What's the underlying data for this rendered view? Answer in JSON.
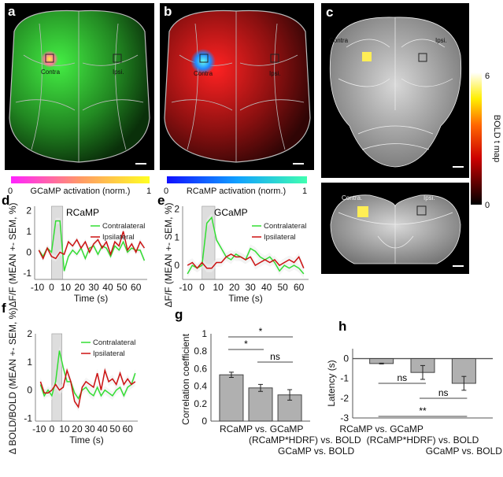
{
  "panels": {
    "a": {
      "label": "a",
      "roi_contra": "Contra",
      "roi_ipsi": "Ipsi.",
      "colorbar": {
        "min": "0",
        "max": "1",
        "title": "GCaMP activation (norm.)",
        "colors": [
          "#ff22ff",
          "#ff9966",
          "#ffff22"
        ]
      }
    },
    "b": {
      "label": "b",
      "roi_contra": "Contra",
      "roi_ipsi": "Ipsi.",
      "colorbar": {
        "min": "0",
        "max": "1",
        "title": "RCaMP activation (norm.)",
        "colors": [
          "#1010ff",
          "#10a0ff",
          "#40ffb0"
        ]
      }
    },
    "c": {
      "label": "c",
      "top_contra": "Contra",
      "top_ipsi": "Ipsi.",
      "bottom_contra": "Contra.",
      "bottom_ipsi": "Ipsi.",
      "colorbar": {
        "min": "0",
        "max": "6",
        "title": "BOLD  t map",
        "colors": [
          "#000000",
          "#cc0000",
          "#ff6600",
          "#ffee00",
          "#ffffff"
        ]
      }
    },
    "d": {
      "label": "d"
    },
    "e": {
      "label": "e"
    },
    "f": {
      "label": "f"
    },
    "g": {
      "label": "g"
    },
    "h": {
      "label": "h"
    }
  },
  "chart_data": [
    {
      "id": "d",
      "type": "line",
      "title": "RCaMP",
      "xlabel": "Time (s)",
      "ylabel": "ΔF/F (MEAN +- SEM, %)",
      "xlim": [
        -12,
        68
      ],
      "ylim": [
        -1.3,
        2.2
      ],
      "xticks": [
        "-10",
        "0",
        "10",
        "20",
        "30",
        "40",
        "50",
        "60"
      ],
      "yticks": [
        "-1",
        "0",
        "1",
        "2"
      ],
      "stimulus": [
        0,
        8
      ],
      "legend": "top-right",
      "x": [
        -9,
        -6,
        -3,
        0,
        3,
        6,
        9,
        12,
        15,
        18,
        21,
        24,
        27,
        30,
        33,
        36,
        39,
        42,
        45,
        48,
        51,
        54,
        57,
        60,
        63,
        66
      ],
      "series": [
        {
          "name": "Contralateral",
          "color": "#33dd33",
          "values": [
            0.1,
            -0.2,
            0.2,
            0,
            1.5,
            1.5,
            -0.9,
            -0.2,
            0.1,
            -0.1,
            0.2,
            -0.3,
            0.2,
            0.3,
            -0.1,
            0.3,
            0.2,
            -0.2,
            0.3,
            0.1,
            0.5,
            0,
            0.2,
            0.1,
            0.1,
            -0.4
          ]
        },
        {
          "name": "Ipsilateral",
          "color": "#cc1111",
          "values": [
            0.1,
            -0.3,
            0.2,
            -0.2,
            -0.3,
            0,
            -0.1,
            0.5,
            0.3,
            0.6,
            0.2,
            0.5,
            0,
            0.4,
            0.6,
            0.2,
            0.5,
            -0.1,
            0.5,
            0.3,
            1.0,
            0.1,
            0.4,
            0,
            0.5,
            0.2
          ]
        }
      ]
    },
    {
      "id": "e",
      "type": "line",
      "title": "GCaMP",
      "xlabel": "Time (s)",
      "ylabel": "ΔF/F (MEAN +- SEM, %)",
      "xlim": [
        -12,
        66
      ],
      "ylim": [
        -0.5,
        2.1
      ],
      "xticks": [
        "-10",
        "0",
        "10",
        "20",
        "30",
        "40",
        "50",
        "60"
      ],
      "yticks": [
        "0",
        "1",
        "2"
      ],
      "stimulus": [
        0,
        8
      ],
      "legend": "top-right",
      "x": [
        -9,
        -6,
        -3,
        0,
        3,
        6,
        9,
        12,
        15,
        18,
        21,
        24,
        27,
        30,
        33,
        36,
        39,
        42,
        45,
        48,
        51,
        54,
        57,
        60,
        63
      ],
      "series": [
        {
          "name": "Contralateral",
          "color": "#33dd33",
          "values": [
            -0.3,
            0,
            -0.1,
            0,
            1.5,
            1.7,
            0.9,
            0.6,
            0.3,
            0.2,
            0.4,
            0.3,
            0.2,
            0.6,
            0.5,
            0.3,
            0.2,
            0.3,
            0.1,
            -0.2,
            0,
            -0.1,
            0,
            -0.1,
            -0.3
          ]
        },
        {
          "name": "Ipsilateral",
          "color": "#cc1111",
          "values": [
            0,
            0.1,
            -0.1,
            0.1,
            -0.1,
            -0.1,
            0.1,
            0.1,
            0.3,
            0.4,
            0.3,
            0.3,
            0.2,
            0.3,
            0,
            0.1,
            0.2,
            0.1,
            0.2,
            0,
            0.1,
            0.2,
            0.1,
            0.3,
            -0.1
          ]
        }
      ]
    },
    {
      "id": "f",
      "type": "line",
      "title": "",
      "xlabel": "Time (s)",
      "ylabel": "Δ BOLD/BOLD (MEAN +- SEM, %)",
      "xlim": [
        -13,
        68
      ],
      "ylim": [
        -1.1,
        2
      ],
      "xticks": [
        "-10",
        "0",
        "10",
        "20",
        "30",
        "40",
        "50",
        "60"
      ],
      "yticks": [
        "-1",
        "0",
        "1",
        "2"
      ],
      "stimulus": [
        0,
        8
      ],
      "legend": "top-right",
      "x": [
        -9,
        -6,
        -3,
        0,
        3,
        6,
        9,
        12,
        15,
        18,
        21,
        24,
        27,
        30,
        33,
        36,
        39,
        42,
        45,
        48,
        51,
        54,
        57,
        60,
        63,
        66
      ],
      "series": [
        {
          "name": "Contralateral",
          "color": "#33dd33",
          "values": [
            0.2,
            -0.2,
            0,
            -0.2,
            0.3,
            1.4,
            0.8,
            0.3,
            0.3,
            -0.1,
            -0.3,
            0,
            0.1,
            -0.1,
            -0.2,
            0.1,
            -0.2,
            0,
            -0.1,
            -0.2,
            0,
            0.1,
            -0.2,
            0.1,
            0.2,
            0.6
          ]
        },
        {
          "name": "Ipsilateral",
          "color": "#cc1111",
          "values": [
            0.3,
            -0.1,
            -0.1,
            0,
            0.2,
            0,
            0.1,
            0.7,
            0.3,
            -0.4,
            -0.6,
            0.1,
            0.3,
            0.2,
            0.1,
            0.6,
            0,
            0.7,
            0.3,
            0.4,
            0.2,
            0.6,
            0.2,
            0.4,
            0.2,
            0.3
          ]
        }
      ]
    },
    {
      "id": "g",
      "type": "bar",
      "title": "",
      "ylabel": "Correlation coefficient",
      "ylim": [
        0,
        1
      ],
      "yticks": [
        "0",
        "0.2",
        "0.4",
        "0.6",
        "0.8",
        "1"
      ],
      "categories": [
        "RCaMP vs. GCaMP",
        "(RCaMP*HDRF) vs. BOLD",
        "GCaMP vs. BOLD"
      ],
      "values": [
        0.53,
        0.38,
        0.3
      ],
      "errors": [
        0.03,
        0.04,
        0.06
      ],
      "color": "#b0b0b0",
      "significance": [
        {
          "from": 0,
          "to": 2,
          "label": "*"
        },
        {
          "from": 0,
          "to": 1,
          "label": "*"
        },
        {
          "from": 1,
          "to": 2,
          "label": "ns"
        }
      ]
    },
    {
      "id": "h",
      "type": "bar",
      "title": "",
      "ylabel": "Latency (s)",
      "ylim": [
        -3,
        0.5
      ],
      "yticks": [
        "-3",
        "-2",
        "-1",
        "0"
      ],
      "categories": [
        "RCaMP vs. GCaMP",
        "(RCaMP*HDRF) vs. BOLD",
        "GCaMP vs. BOLD"
      ],
      "values": [
        -0.25,
        -0.7,
        -1.25
      ],
      "errors": [
        0.02,
        0.35,
        0.35
      ],
      "color": "#b0b0b0",
      "significance": [
        {
          "from": 0,
          "to": 1,
          "label": "ns"
        },
        {
          "from": 1,
          "to": 2,
          "label": "ns"
        },
        {
          "from": 0,
          "to": 2,
          "label": "**"
        }
      ]
    }
  ]
}
